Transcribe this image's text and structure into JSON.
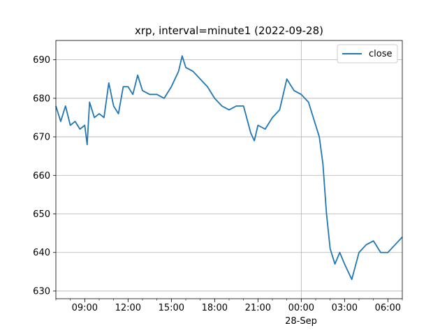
{
  "chart_data": {
    "type": "line",
    "title": "xrp, interval=minute1 (2022-09-28)",
    "xlabel": "",
    "ylabel": "",
    "grid": true,
    "legend_position": "top-right",
    "series_color": "#1f77b4",
    "x_range": [
      "2022-09-27 07:00",
      "2022-09-28 07:00"
    ],
    "ylim": [
      628,
      695
    ],
    "y_ticks": [
      630,
      640,
      650,
      660,
      670,
      680,
      690
    ],
    "y_tick_labels": [
      "630",
      "640",
      "650",
      "660",
      "670",
      "680",
      "690"
    ],
    "x_ticks": [
      "2022-09-27 09:00",
      "2022-09-27 12:00",
      "2022-09-27 15:00",
      "2022-09-27 18:00",
      "2022-09-27 21:00",
      "2022-09-28 00:00",
      "2022-09-28 03:00",
      "2022-09-28 06:00"
    ],
    "x_tick_labels": [
      "09:00",
      "12:00",
      "15:00",
      "18:00",
      "21:00",
      "00:00",
      "03:00",
      "06:00"
    ],
    "x_date_label": "28-Sep",
    "series": [
      {
        "name": "close",
        "x": [
          "2022-09-27 07:00",
          "2022-09-27 07:20",
          "2022-09-27 07:40",
          "2022-09-27 08:00",
          "2022-09-27 08:20",
          "2022-09-27 08:40",
          "2022-09-27 09:00",
          "2022-09-27 09:10",
          "2022-09-27 09:20",
          "2022-09-27 09:40",
          "2022-09-27 10:00",
          "2022-09-27 10:20",
          "2022-09-27 10:40",
          "2022-09-27 11:00",
          "2022-09-27 11:20",
          "2022-09-27 11:40",
          "2022-09-27 12:00",
          "2022-09-27 12:20",
          "2022-09-27 12:40",
          "2022-09-27 13:00",
          "2022-09-27 13:30",
          "2022-09-27 14:00",
          "2022-09-27 14:30",
          "2022-09-27 15:00",
          "2022-09-27 15:30",
          "2022-09-27 15:45",
          "2022-09-27 16:00",
          "2022-09-27 16:30",
          "2022-09-27 17:00",
          "2022-09-27 17:30",
          "2022-09-27 18:00",
          "2022-09-27 18:30",
          "2022-09-27 19:00",
          "2022-09-27 19:30",
          "2022-09-27 20:00",
          "2022-09-27 20:30",
          "2022-09-27 20:45",
          "2022-09-27 21:00",
          "2022-09-27 21:30",
          "2022-09-27 22:00",
          "2022-09-27 22:30",
          "2022-09-27 23:00",
          "2022-09-27 23:30",
          "2022-09-28 00:00",
          "2022-09-28 00:30",
          "2022-09-28 01:00",
          "2022-09-28 01:15",
          "2022-09-28 01:30",
          "2022-09-28 01:45",
          "2022-09-28 02:00",
          "2022-09-28 02:20",
          "2022-09-28 02:40",
          "2022-09-28 03:00",
          "2022-09-28 03:30",
          "2022-09-28 04:00",
          "2022-09-28 04:30",
          "2022-09-28 05:00",
          "2022-09-28 05:30",
          "2022-09-28 06:00",
          "2022-09-28 06:30",
          "2022-09-28 07:00"
        ],
        "values": [
          678,
          674,
          678,
          673,
          674,
          672,
          673,
          668,
          679,
          675,
          676,
          675,
          684,
          678,
          676,
          683,
          683,
          681,
          686,
          682,
          681,
          681,
          680,
          683,
          687,
          691,
          688,
          687,
          685,
          683,
          680,
          678,
          677,
          678,
          678,
          671,
          669,
          673,
          672,
          675,
          677,
          685,
          682,
          681,
          679,
          673,
          670,
          663,
          650,
          641,
          637,
          640,
          637,
          633,
          640,
          642,
          643,
          640,
          640,
          642,
          644
        ]
      }
    ]
  }
}
